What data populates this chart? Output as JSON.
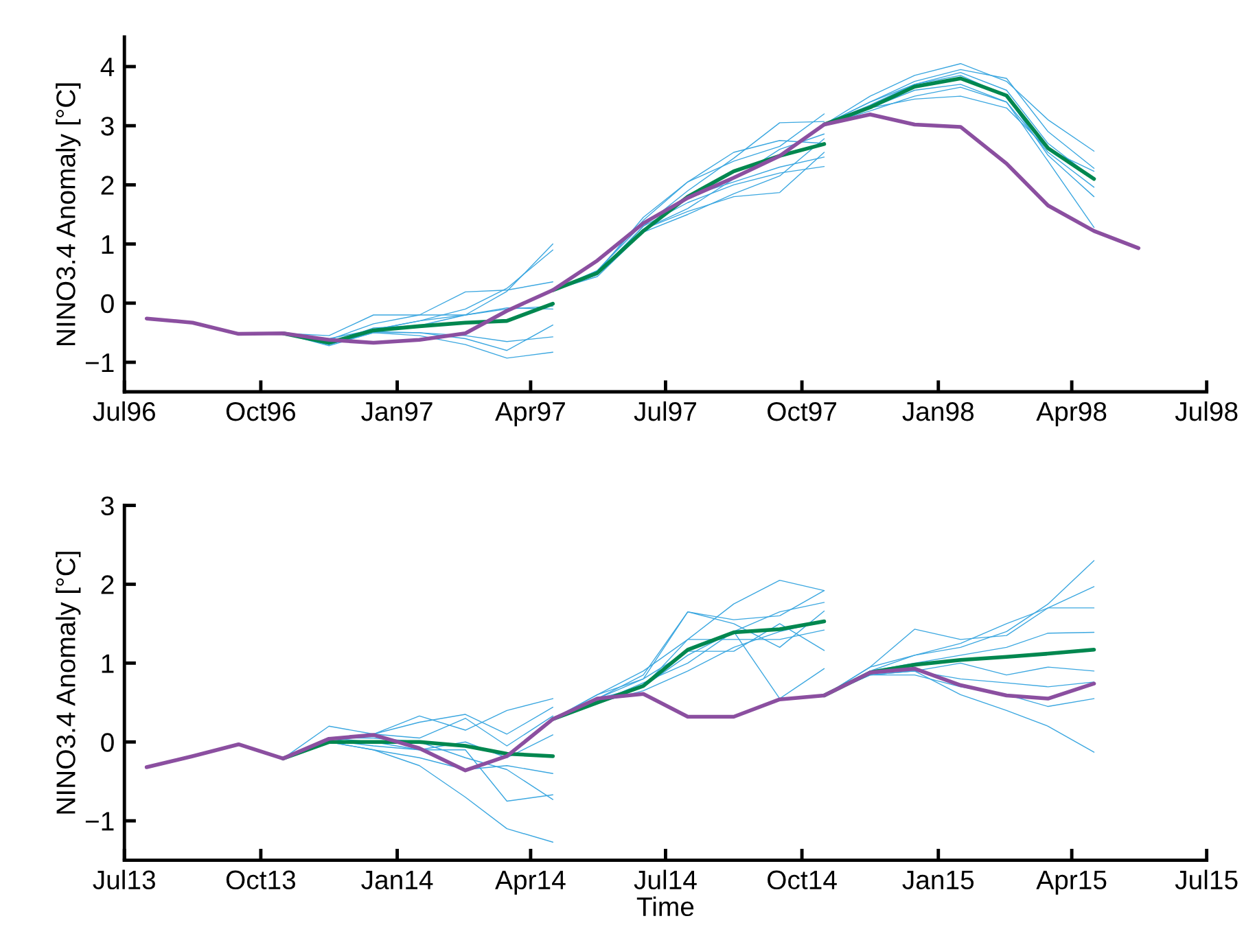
{
  "chart_data": [
    {
      "type": "line",
      "ylabel": "NINO3.4 Anomaly [°C]",
      "xlim": [
        "1996-07-01",
        "1998-07-01"
      ],
      "xticks": [
        {
          "value": "1996-07-01",
          "label": "Jul96"
        },
        {
          "value": "1996-10-01",
          "label": "Oct96"
        },
        {
          "value": "1997-01-01",
          "label": "Jan97"
        },
        {
          "value": "1997-04-01",
          "label": "Apr97"
        },
        {
          "value": "1997-07-01",
          "label": "Jul97"
        },
        {
          "value": "1997-10-01",
          "label": "Oct97"
        },
        {
          "value": "1998-01-01",
          "label": "Jan98"
        },
        {
          "value": "1998-04-01",
          "label": "Apr98"
        },
        {
          "value": "1998-07-01",
          "label": "Jul98"
        }
      ],
      "ylim": [
        -1.5,
        4.5
      ],
      "yticks": [
        {
          "value": -1,
          "label": "−1"
        },
        0,
        1,
        2,
        3,
        4
      ],
      "grid": false,
      "legend": false,
      "marker": "none",
      "line_style": "solid",
      "series": [
        {
          "color": "#3ba7e0",
          "x": [
            "1996-10-16",
            "1996-11-16",
            "1996-12-16",
            "1997-01-16",
            "1997-02-16",
            "1997-03-16",
            "1997-04-16"
          ],
          "values": [
            -0.51,
            -0.62,
            -0.35,
            -0.2,
            0.19,
            0.22,
            0.36
          ]
        },
        {
          "color": "#3ba7e0",
          "x": [
            "1996-10-16",
            "1996-11-16",
            "1996-12-16",
            "1997-01-16",
            "1997-02-16",
            "1997-03-16",
            "1997-04-16"
          ],
          "values": [
            -0.51,
            -0.65,
            -0.45,
            -0.3,
            -0.2,
            0.2,
            1.0
          ]
        },
        {
          "color": "#3ba7e0",
          "x": [
            "1996-10-16",
            "1996-11-16",
            "1996-12-16",
            "1997-01-16",
            "1997-02-16",
            "1997-03-16",
            "1997-04-16"
          ],
          "values": [
            -0.51,
            -0.6,
            -0.45,
            -0.3,
            -0.1,
            0.25,
            0.9
          ]
        },
        {
          "color": "#3ba7e0",
          "x": [
            "1996-10-16",
            "1996-11-16",
            "1996-12-16",
            "1997-01-16",
            "1997-02-16",
            "1997-03-16",
            "1997-04-16"
          ],
          "values": [
            -0.51,
            -0.55,
            -0.2,
            -0.2,
            -0.2,
            -0.1,
            -0.05
          ]
        },
        {
          "color": "#3ba7e0",
          "x": [
            "1996-10-16",
            "1996-11-16",
            "1996-12-16",
            "1997-01-16",
            "1997-02-16",
            "1997-03-16",
            "1997-04-16"
          ],
          "values": [
            -0.51,
            -0.7,
            -0.5,
            -0.5,
            -0.55,
            -0.65,
            -0.57
          ]
        },
        {
          "color": "#3ba7e0",
          "x": [
            "1996-10-16",
            "1996-11-16",
            "1996-12-16",
            "1997-01-16",
            "1997-02-16",
            "1997-03-16",
            "1997-04-16"
          ],
          "values": [
            -0.51,
            -0.72,
            -0.5,
            -0.55,
            -0.7,
            -0.93,
            -0.83
          ]
        },
        {
          "color": "#3ba7e0",
          "x": [
            "1996-10-16",
            "1996-11-16",
            "1996-12-16",
            "1997-01-16",
            "1997-02-16",
            "1997-03-16",
            "1997-04-16"
          ],
          "values": [
            -0.51,
            -0.7,
            -0.48,
            -0.5,
            -0.6,
            -0.8,
            -0.37
          ]
        },
        {
          "color": "#3ba7e0",
          "x": [
            "1996-10-16",
            "1996-11-16",
            "1996-12-16",
            "1997-01-16",
            "1997-02-16",
            "1997-03-16",
            "1997-04-16"
          ],
          "values": [
            -0.51,
            -0.68,
            -0.42,
            -0.38,
            -0.2,
            -0.08,
            -0.1
          ]
        },
        {
          "color": "#3ba7e0",
          "x": [
            "1997-04-16",
            "1997-05-16",
            "1997-06-16",
            "1997-07-16",
            "1997-08-16",
            "1997-09-16",
            "1997-10-16"
          ],
          "values": [
            0.22,
            0.55,
            1.4,
            2.05,
            2.4,
            2.65,
            3.2
          ]
        },
        {
          "color": "#3ba7e0",
          "x": [
            "1997-04-16",
            "1997-05-16",
            "1997-06-16",
            "1997-07-16",
            "1997-08-16",
            "1997-09-16",
            "1997-10-16"
          ],
          "values": [
            0.22,
            0.5,
            1.3,
            1.9,
            2.45,
            3.05,
            3.07
          ]
        },
        {
          "color": "#3ba7e0",
          "x": [
            "1997-04-16",
            "1997-05-16",
            "1997-06-16",
            "1997-07-16",
            "1997-08-16",
            "1997-09-16",
            "1997-10-16"
          ],
          "values": [
            0.22,
            0.5,
            1.25,
            1.6,
            2.1,
            2.6,
            2.86
          ]
        },
        {
          "color": "#3ba7e0",
          "x": [
            "1997-04-16",
            "1997-05-16",
            "1997-06-16",
            "1997-07-16",
            "1997-08-16",
            "1997-09-16",
            "1997-10-16"
          ],
          "values": [
            0.22,
            0.45,
            1.2,
            1.5,
            1.85,
            2.15,
            2.78
          ]
        },
        {
          "color": "#3ba7e0",
          "x": [
            "1997-04-16",
            "1997-05-16",
            "1997-06-16",
            "1997-07-16",
            "1997-08-16",
            "1997-09-16",
            "1997-10-16"
          ],
          "values": [
            0.22,
            0.5,
            1.25,
            1.55,
            1.8,
            1.87,
            2.55
          ]
        },
        {
          "color": "#3ba7e0",
          "x": [
            "1997-04-16",
            "1997-05-16",
            "1997-06-16",
            "1997-07-16",
            "1997-08-16",
            "1997-09-16",
            "1997-10-16"
          ],
          "values": [
            0.22,
            0.55,
            1.35,
            1.8,
            2.05,
            2.3,
            2.47
          ]
        },
        {
          "color": "#3ba7e0",
          "x": [
            "1997-04-16",
            "1997-05-16",
            "1997-06-16",
            "1997-07-16",
            "1997-08-16",
            "1997-09-16",
            "1997-10-16"
          ],
          "values": [
            0.22,
            0.48,
            1.3,
            1.7,
            2.0,
            2.2,
            2.31
          ]
        },
        {
          "color": "#3ba7e0",
          "x": [
            "1997-04-16",
            "1997-05-16",
            "1997-06-16",
            "1997-07-16",
            "1997-08-16",
            "1997-09-16",
            "1997-10-16"
          ],
          "values": [
            0.22,
            0.52,
            1.45,
            2.05,
            2.55,
            2.75,
            2.7
          ]
        },
        {
          "color": "#3ba7e0",
          "x": [
            "1997-10-16",
            "1997-11-16",
            "1997-12-16",
            "1998-01-16",
            "1998-02-16",
            "1998-03-16",
            "1998-04-16"
          ],
          "values": [
            3.02,
            3.5,
            3.85,
            4.05,
            3.75,
            3.1,
            2.57
          ]
        },
        {
          "color": "#3ba7e0",
          "x": [
            "1997-10-16",
            "1997-11-16",
            "1997-12-16",
            "1998-01-16",
            "1998-02-16",
            "1998-03-16",
            "1998-04-16"
          ],
          "values": [
            3.02,
            3.4,
            3.75,
            3.95,
            3.8,
            2.9,
            2.28
          ]
        },
        {
          "color": "#3ba7e0",
          "x": [
            "1997-10-16",
            "1997-11-16",
            "1997-12-16",
            "1998-01-16",
            "1998-02-16",
            "1998-03-16",
            "1998-04-16"
          ],
          "values": [
            3.02,
            3.3,
            3.6,
            3.7,
            3.4,
            2.4,
            1.28
          ]
        },
        {
          "color": "#3ba7e0",
          "x": [
            "1997-10-16",
            "1997-11-16",
            "1997-12-16",
            "1998-01-16",
            "1998-02-16",
            "1998-03-16",
            "1998-04-16"
          ],
          "values": [
            3.02,
            3.3,
            3.45,
            3.5,
            3.3,
            2.6,
            2.23
          ]
        },
        {
          "color": "#3ba7e0",
          "x": [
            "1997-10-16",
            "1997-11-16",
            "1997-12-16",
            "1998-01-16",
            "1998-02-16",
            "1998-03-16",
            "1998-04-16"
          ],
          "values": [
            3.02,
            3.35,
            3.7,
            3.85,
            3.5,
            2.5,
            1.8
          ]
        },
        {
          "color": "#3ba7e0",
          "x": [
            "1997-10-16",
            "1997-11-16",
            "1997-12-16",
            "1998-01-16",
            "1998-02-16",
            "1998-03-16",
            "1998-04-16"
          ],
          "values": [
            3.02,
            3.4,
            3.7,
            3.9,
            3.6,
            2.7,
            2.1
          ]
        },
        {
          "color": "#3ba7e0",
          "x": [
            "1997-10-16",
            "1997-11-16",
            "1997-12-16",
            "1998-01-16",
            "1998-02-16",
            "1998-03-16",
            "1998-04-16"
          ],
          "values": [
            3.02,
            3.25,
            3.5,
            3.65,
            3.4,
            2.55,
            1.96
          ]
        },
        {
          "color": "#00874f",
          "x": [
            "1996-10-16",
            "1996-11-16",
            "1996-12-16",
            "1997-01-16",
            "1997-02-16",
            "1997-03-16",
            "1997-04-16"
          ],
          "values": [
            -0.51,
            -0.67,
            -0.46,
            -0.39,
            -0.33,
            -0.3,
            -0.01
          ]
        },
        {
          "color": "#00874f",
          "x": [
            "1997-04-16",
            "1997-05-16",
            "1997-06-16",
            "1997-07-16",
            "1997-08-16",
            "1997-09-16",
            "1997-10-16"
          ],
          "values": [
            0.22,
            0.51,
            1.22,
            1.8,
            2.23,
            2.49,
            2.69
          ]
        },
        {
          "color": "#00874f",
          "x": [
            "1997-10-16",
            "1997-11-16",
            "1997-12-16",
            "1998-01-16",
            "1998-02-16",
            "1998-03-16",
            "1998-04-16"
          ],
          "values": [
            3.02,
            3.31,
            3.66,
            3.8,
            3.51,
            2.62,
            2.1
          ]
        },
        {
          "color": "#8b4fa0",
          "x": [
            "1996-07-16",
            "1996-08-16",
            "1996-09-16",
            "1996-10-16",
            "1996-11-16",
            "1996-12-16",
            "1997-01-16",
            "1997-02-16",
            "1997-03-16",
            "1997-04-16",
            "1997-05-16",
            "1997-06-16",
            "1997-07-16",
            "1997-08-16",
            "1997-09-16",
            "1997-10-16",
            "1997-11-16",
            "1997-12-16",
            "1998-01-16",
            "1998-02-16",
            "1998-03-16",
            "1998-04-16",
            "1998-05-16"
          ],
          "values": [
            -0.26,
            -0.33,
            -0.52,
            -0.51,
            -0.62,
            -0.67,
            -0.62,
            -0.51,
            -0.13,
            0.22,
            0.72,
            1.35,
            1.78,
            2.12,
            2.49,
            3.02,
            3.19,
            3.02,
            2.98,
            2.36,
            1.65,
            1.22,
            0.93
          ]
        }
      ]
    },
    {
      "type": "line",
      "xlabel": "Time",
      "ylabel": "NINO3.4 Anomaly [°C]",
      "xlim": [
        "2013-07-01",
        "2015-07-01"
      ],
      "xticks": [
        {
          "value": "2013-07-01",
          "label": "Jul13"
        },
        {
          "value": "2013-10-01",
          "label": "Oct13"
        },
        {
          "value": "2014-01-01",
          "label": "Jan14"
        },
        {
          "value": "2014-04-01",
          "label": "Apr14"
        },
        {
          "value": "2014-07-01",
          "label": "Jul14"
        },
        {
          "value": "2014-10-01",
          "label": "Oct14"
        },
        {
          "value": "2015-01-01",
          "label": "Jan15"
        },
        {
          "value": "2015-04-01",
          "label": "Apr15"
        },
        {
          "value": "2015-07-01",
          "label": "Jul15"
        }
      ],
      "ylim": [
        -1.5,
        3
      ],
      "yticks": [
        {
          "value": -1,
          "label": "−1"
        },
        0,
        1,
        2,
        3
      ],
      "grid": false,
      "legend": false,
      "marker": "none",
      "line_style": "solid",
      "series": [
        {
          "color": "#3ba7e0",
          "x": [
            "2013-10-16",
            "2013-11-16",
            "2013-12-16",
            "2014-01-16",
            "2014-02-16",
            "2014-03-16",
            "2014-04-16"
          ],
          "values": [
            -0.21,
            0.05,
            0.1,
            0.33,
            0.15,
            0.4,
            0.55
          ]
        },
        {
          "color": "#3ba7e0",
          "x": [
            "2013-10-16",
            "2013-11-16",
            "2013-12-16",
            "2014-01-16",
            "2014-02-16",
            "2014-03-16",
            "2014-04-16"
          ],
          "values": [
            -0.21,
            0.2,
            0.1,
            0.25,
            0.35,
            0.1,
            0.44
          ]
        },
        {
          "color": "#3ba7e0",
          "x": [
            "2013-10-16",
            "2013-11-16",
            "2013-12-16",
            "2014-01-16",
            "2014-02-16",
            "2014-03-16",
            "2014-04-16"
          ],
          "values": [
            -0.21,
            0.0,
            0.1,
            0.05,
            0.3,
            -0.05,
            0.33
          ]
        },
        {
          "color": "#3ba7e0",
          "x": [
            "2013-10-16",
            "2013-11-16",
            "2013-12-16",
            "2014-01-16",
            "2014-02-16",
            "2014-03-16",
            "2014-04-16"
          ],
          "values": [
            -0.21,
            0.02,
            -0.05,
            -0.1,
            0.0,
            -0.2,
            0.09
          ]
        },
        {
          "color": "#3ba7e0",
          "x": [
            "2013-10-16",
            "2013-11-16",
            "2013-12-16",
            "2014-01-16",
            "2014-02-16",
            "2014-03-16",
            "2014-04-16"
          ],
          "values": [
            -0.21,
            0.0,
            -0.1,
            -0.2,
            -0.35,
            -0.3,
            -0.4
          ]
        },
        {
          "color": "#3ba7e0",
          "x": [
            "2013-10-16",
            "2013-11-16",
            "2013-12-16",
            "2014-01-16",
            "2014-02-16",
            "2014-03-16",
            "2014-04-16"
          ],
          "values": [
            -0.21,
            0.05,
            0.0,
            -0.1,
            -0.1,
            -0.75,
            -0.67
          ]
        },
        {
          "color": "#3ba7e0",
          "x": [
            "2013-10-16",
            "2013-11-16",
            "2013-12-16",
            "2014-01-16",
            "2014-02-16",
            "2014-03-16",
            "2014-04-16"
          ],
          "values": [
            -0.21,
            0.0,
            -0.1,
            -0.3,
            -0.7,
            -1.1,
            -1.27
          ]
        },
        {
          "color": "#3ba7e0",
          "x": [
            "2013-10-16",
            "2013-11-16",
            "2013-12-16",
            "2014-01-16",
            "2014-02-16",
            "2014-03-16",
            "2014-04-16"
          ],
          "values": [
            -0.21,
            0.05,
            0.05,
            0.0,
            -0.2,
            -0.35,
            -0.73
          ]
        },
        {
          "color": "#3ba7e0",
          "x": [
            "2014-04-16",
            "2014-05-16",
            "2014-06-16",
            "2014-07-16",
            "2014-08-16",
            "2014-09-16",
            "2014-10-16"
          ],
          "values": [
            0.29,
            0.55,
            0.85,
            1.65,
            1.55,
            1.6,
            1.92
          ]
        },
        {
          "color": "#3ba7e0",
          "x": [
            "2014-04-16",
            "2014-05-16",
            "2014-06-16",
            "2014-07-16",
            "2014-08-16",
            "2014-09-16",
            "2014-10-16"
          ],
          "values": [
            0.29,
            0.6,
            0.9,
            1.3,
            1.75,
            2.05,
            1.92
          ]
        },
        {
          "color": "#3ba7e0",
          "x": [
            "2014-04-16",
            "2014-05-16",
            "2014-06-16",
            "2014-07-16",
            "2014-08-16",
            "2014-09-16",
            "2014-10-16"
          ],
          "values": [
            0.29,
            0.5,
            0.75,
            1.0,
            1.4,
            1.65,
            1.77
          ]
        },
        {
          "color": "#3ba7e0",
          "x": [
            "2014-04-16",
            "2014-05-16",
            "2014-06-16",
            "2014-07-16",
            "2014-08-16",
            "2014-09-16",
            "2014-10-16"
          ],
          "values": [
            0.29,
            0.55,
            0.8,
            1.65,
            1.5,
            1.2,
            1.66
          ]
        },
        {
          "color": "#3ba7e0",
          "x": [
            "2014-04-16",
            "2014-05-16",
            "2014-06-16",
            "2014-07-16",
            "2014-08-16",
            "2014-09-16",
            "2014-10-16"
          ],
          "values": [
            0.29,
            0.5,
            0.65,
            0.9,
            1.2,
            1.4,
            1.53
          ]
        },
        {
          "color": "#3ba7e0",
          "x": [
            "2014-04-16",
            "2014-05-16",
            "2014-06-16",
            "2014-07-16",
            "2014-08-16",
            "2014-09-16",
            "2014-10-16"
          ],
          "values": [
            0.29,
            0.55,
            0.7,
            1.3,
            1.3,
            1.3,
            1.42
          ]
        },
        {
          "color": "#3ba7e0",
          "x": [
            "2014-04-16",
            "2014-05-16",
            "2014-06-16",
            "2014-07-16",
            "2014-08-16",
            "2014-09-16",
            "2014-10-16"
          ],
          "values": [
            0.29,
            0.6,
            0.8,
            1.15,
            1.15,
            1.5,
            1.16
          ]
        },
        {
          "color": "#3ba7e0",
          "x": [
            "2014-04-16",
            "2014-05-16",
            "2014-06-16",
            "2014-07-16",
            "2014-08-16",
            "2014-09-16",
            "2014-10-16"
          ],
          "values": [
            0.29,
            0.5,
            0.7,
            1.1,
            1.4,
            0.55,
            0.93
          ]
        },
        {
          "color": "#3ba7e0",
          "x": [
            "2014-10-16",
            "2014-11-16",
            "2014-12-16",
            "2015-01-16",
            "2015-02-16",
            "2015-03-16",
            "2015-04-16"
          ],
          "values": [
            0.59,
            0.95,
            1.1,
            1.2,
            1.4,
            1.75,
            2.3
          ]
        },
        {
          "color": "#3ba7e0",
          "x": [
            "2014-10-16",
            "2014-11-16",
            "2014-12-16",
            "2015-01-16",
            "2015-02-16",
            "2015-03-16",
            "2015-04-16"
          ],
          "values": [
            0.59,
            0.9,
            1.1,
            1.25,
            1.5,
            1.7,
            1.97
          ]
        },
        {
          "color": "#3ba7e0",
          "x": [
            "2014-10-16",
            "2014-11-16",
            "2014-12-16",
            "2015-01-16",
            "2015-02-16",
            "2015-03-16",
            "2015-04-16"
          ],
          "values": [
            0.59,
            0.95,
            1.43,
            1.3,
            1.35,
            1.7,
            1.7
          ]
        },
        {
          "color": "#3ba7e0",
          "x": [
            "2014-10-16",
            "2014-11-16",
            "2014-12-16",
            "2015-01-16",
            "2015-02-16",
            "2015-03-16",
            "2015-04-16"
          ],
          "values": [
            0.59,
            0.9,
            1.0,
            1.1,
            1.2,
            1.38,
            1.39
          ]
        },
        {
          "color": "#3ba7e0",
          "x": [
            "2014-10-16",
            "2014-11-16",
            "2014-12-16",
            "2015-01-16",
            "2015-02-16",
            "2015-03-16",
            "2015-04-16"
          ],
          "values": [
            0.59,
            0.85,
            0.9,
            1.0,
            0.85,
            0.95,
            0.9
          ]
        },
        {
          "color": "#3ba7e0",
          "x": [
            "2014-10-16",
            "2014-11-16",
            "2014-12-16",
            "2015-01-16",
            "2015-02-16",
            "2015-03-16",
            "2015-04-16"
          ],
          "values": [
            0.59,
            0.85,
            0.9,
            0.8,
            0.75,
            0.7,
            0.76
          ]
        },
        {
          "color": "#3ba7e0",
          "x": [
            "2014-10-16",
            "2014-11-16",
            "2014-12-16",
            "2015-01-16",
            "2015-02-16",
            "2015-03-16",
            "2015-04-16"
          ],
          "values": [
            0.59,
            0.85,
            0.85,
            0.7,
            0.6,
            0.45,
            0.55
          ]
        },
        {
          "color": "#3ba7e0",
          "x": [
            "2014-10-16",
            "2014-11-16",
            "2014-12-16",
            "2015-01-16",
            "2015-02-16",
            "2015-03-16",
            "2015-04-16"
          ],
          "values": [
            0.59,
            0.9,
            0.9,
            0.6,
            0.4,
            0.2,
            -0.13
          ]
        },
        {
          "color": "#00874f",
          "x": [
            "2013-10-16",
            "2013-11-16",
            "2013-12-16",
            "2014-01-16",
            "2014-02-16",
            "2014-03-16",
            "2014-04-16"
          ],
          "values": [
            -0.21,
            0.0,
            0.0,
            0.0,
            -0.05,
            -0.15,
            -0.18
          ]
        },
        {
          "color": "#00874f",
          "x": [
            "2014-04-16",
            "2014-05-16",
            "2014-06-16",
            "2014-07-16",
            "2014-08-16",
            "2014-09-16",
            "2014-10-16"
          ],
          "values": [
            0.29,
            0.5,
            0.71,
            1.17,
            1.39,
            1.43,
            1.53
          ]
        },
        {
          "color": "#00874f",
          "x": [
            "2014-10-16",
            "2014-11-16",
            "2014-12-16",
            "2015-01-16",
            "2015-02-16",
            "2015-03-16",
            "2015-04-16"
          ],
          "values": [
            0.59,
            0.88,
            0.98,
            1.04,
            1.08,
            1.12,
            1.17
          ]
        },
        {
          "color": "#8b4fa0",
          "x": [
            "2013-07-16",
            "2013-08-16",
            "2013-09-16",
            "2013-10-16",
            "2013-11-16",
            "2013-12-16",
            "2014-01-16",
            "2014-02-16",
            "2014-03-16",
            "2014-04-16",
            "2014-05-16",
            "2014-06-16",
            "2014-07-16",
            "2014-08-16",
            "2014-09-16",
            "2014-10-16",
            "2014-11-16",
            "2014-12-16",
            "2015-01-16",
            "2015-02-16",
            "2015-03-16",
            "2015-04-16"
          ],
          "values": [
            -0.32,
            -0.18,
            -0.03,
            -0.21,
            0.04,
            0.09,
            -0.08,
            -0.36,
            -0.18,
            0.29,
            0.55,
            0.61,
            0.32,
            0.32,
            0.54,
            0.59,
            0.88,
            0.93,
            0.72,
            0.59,
            0.55,
            0.74
          ]
        }
      ]
    }
  ]
}
